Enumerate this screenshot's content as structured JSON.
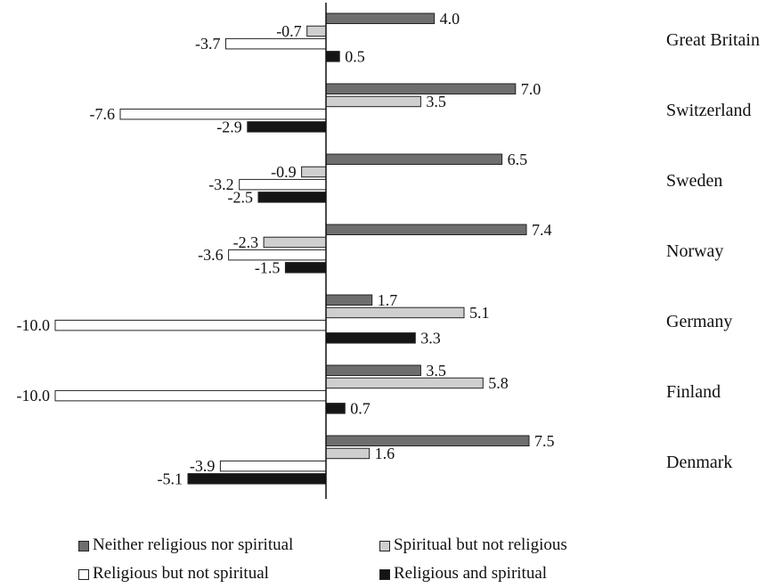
{
  "chart_data": {
    "type": "bar",
    "orientation": "horizontal",
    "categories": [
      "Great Britain",
      "Switzerland",
      "Sweden",
      "Norway",
      "Germany",
      "Finland",
      "Denmark"
    ],
    "series": [
      {
        "name": "Neither religious nor spiritual",
        "color": "#6e6e6e",
        "values": [
          4.0,
          7.0,
          6.5,
          7.4,
          1.7,
          3.5,
          7.5
        ],
        "labels": [
          "4.0",
          "7.0",
          "6.5",
          "7.4",
          "1.7",
          "3.5",
          "7.5"
        ]
      },
      {
        "name": "Spiritual but not religious",
        "color": "#cfcfcf",
        "values": [
          -0.7,
          3.5,
          -0.9,
          -2.3,
          5.1,
          5.8,
          1.6
        ],
        "labels": [
          "-0.7",
          "3.5",
          "-0.9",
          "-2.3",
          "5.1",
          "5.8",
          "1.6"
        ]
      },
      {
        "name": "Religious but not spiritual",
        "color": "#ffffff",
        "values": [
          -3.7,
          -7.6,
          -3.2,
          -3.6,
          -10.0,
          -10.0,
          -3.9
        ],
        "labels": [
          "-3.7",
          "-7.6",
          "-3.2",
          "-3.6",
          "-10.0",
          "-10.0",
          "-3.9"
        ]
      },
      {
        "name": "Religious and spiritual",
        "color": "#151515",
        "values": [
          0.5,
          -2.9,
          -2.5,
          -1.5,
          3.3,
          0.7,
          -5.1
        ],
        "labels": [
          "0.5",
          "-2.9",
          "-2.5",
          "-1.5",
          "3.3",
          "0.7",
          "-5.1"
        ]
      }
    ],
    "title": "",
    "xlabel": "",
    "ylabel": "",
    "xlim": [
      -10.0,
      7.5
    ],
    "grid": false,
    "legend_position": "bottom"
  }
}
